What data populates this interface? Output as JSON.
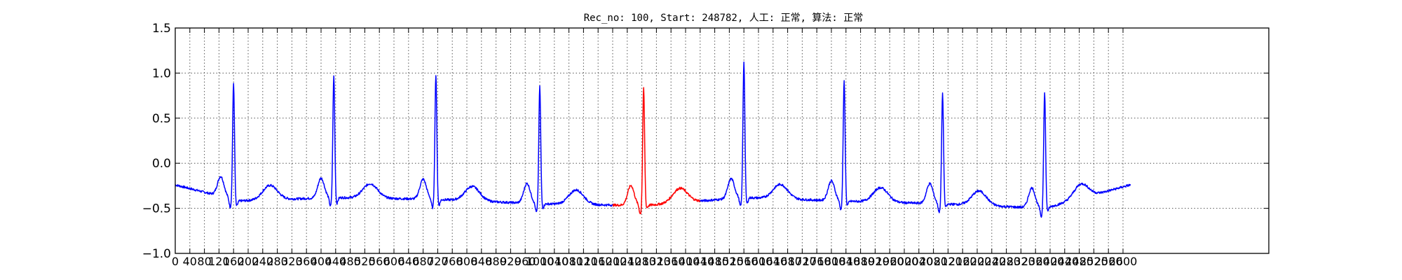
{
  "chart_data": {
    "type": "line",
    "title": "Rec_no: 100, Start: 248782, 人工: 正常, 算法: 正常",
    "xlabel": "",
    "ylabel": "",
    "xlim": [
      0,
      3000
    ],
    "ylim": [
      -1.0,
      1.5
    ],
    "y_ticks": [
      1.5,
      1.0,
      0.5,
      0.0,
      -0.5,
      -1.0
    ],
    "y_tick_labels": [
      "1.5",
      "1.0",
      "0.5",
      "0.0",
      "−0.5",
      "−1.0"
    ],
    "x_ticks": [
      0,
      40,
      80,
      120,
      160,
      200,
      240,
      280,
      320,
      360,
      400,
      440,
      480,
      520,
      560,
      600,
      640,
      680,
      720,
      760,
      800,
      840,
      880,
      920,
      960,
      1000,
      1040,
      1080,
      1120,
      1160,
      1200,
      1240,
      1280,
      1320,
      1360,
      1400,
      1440,
      1480,
      1520,
      1560,
      1600,
      1640,
      1680,
      1720,
      1760,
      1800,
      1840,
      1880,
      1920,
      1960,
      2000,
      2040,
      2080,
      2120,
      2160,
      2200,
      2240,
      2280,
      2320,
      2360,
      2400,
      2440,
      2480,
      2520,
      2560,
      2600
    ],
    "grid": true,
    "colors": {
      "normal": "#0000ff",
      "highlight": "#ff0000",
      "grid": "#555555"
    },
    "highlight_range": [
      1200,
      1440
    ],
    "series": [
      {
        "color": "#0000ff",
        "note": "single ECG trace; segment inside highlight_range drawn in red",
        "beats_r_peak_x": [
          160,
          435,
          715,
          1000,
          1285,
          1560,
          1835,
          2105,
          2385
        ],
        "beats_r_peak_y": [
          0.87,
          0.97,
          0.98,
          0.85,
          0.83,
          1.13,
          0.91,
          0.77,
          0.78
        ],
        "beats_s_trough_y": [
          -0.58,
          -0.55,
          -0.57,
          -0.6,
          -0.6,
          -0.55,
          -0.57,
          -0.59,
          -0.64
        ],
        "baseline_y": [
          -0.42,
          -0.38,
          -0.4,
          -0.45,
          -0.47,
          -0.38,
          -0.42,
          -0.45,
          -0.5
        ],
        "x_end": 2620,
        "y_start": -0.24,
        "y_end": -0.24
      }
    ]
  }
}
